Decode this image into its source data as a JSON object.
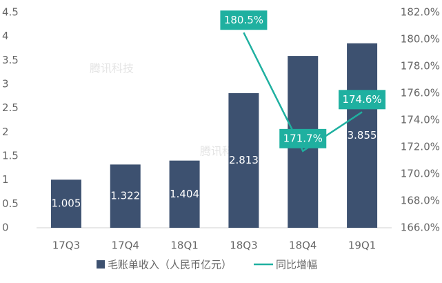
{
  "chart_data": {
    "type": "bar+line",
    "watermark": "腾讯科技",
    "categories": [
      "17Q3",
      "17Q4",
      "18Q1",
      "18Q3",
      "18Q4",
      "19Q1"
    ],
    "series": [
      {
        "name": "毛账单收入（人民币亿元）",
        "type": "bar",
        "color": "#3d5170",
        "values": [
          1.005,
          1.322,
          1.404,
          2.813,
          3.59,
          3.855
        ]
      },
      {
        "name": "同比增幅",
        "type": "line",
        "axis": "y2",
        "color": "#1fb0a0",
        "values": [
          null,
          null,
          null,
          180.5,
          171.7,
          174.6
        ],
        "value_labels": [
          null,
          null,
          null,
          "180.5%",
          "171.7%",
          "174.6%"
        ]
      }
    ],
    "ylim": [
      0,
      4.5
    ],
    "yticks": [
      0,
      0.5,
      1,
      1.5,
      2,
      2.5,
      3,
      3.5,
      4,
      4.5
    ],
    "y2lim": [
      166,
      182
    ],
    "y2ticks": [
      {
        "value": 166,
        "label": "166.0%"
      },
      {
        "value": 168,
        "label": "168.0%"
      },
      {
        "value": 170,
        "label": "170.0%"
      },
      {
        "value": 172,
        "label": "172.0%"
      },
      {
        "value": 174,
        "label": "174.0%"
      },
      {
        "value": 176,
        "label": "176.0%"
      },
      {
        "value": 178,
        "label": "178.0%"
      },
      {
        "value": 180,
        "label": "180.0%"
      },
      {
        "value": 182,
        "label": "182.0%"
      }
    ],
    "grid": false,
    "legend": "bottom"
  }
}
